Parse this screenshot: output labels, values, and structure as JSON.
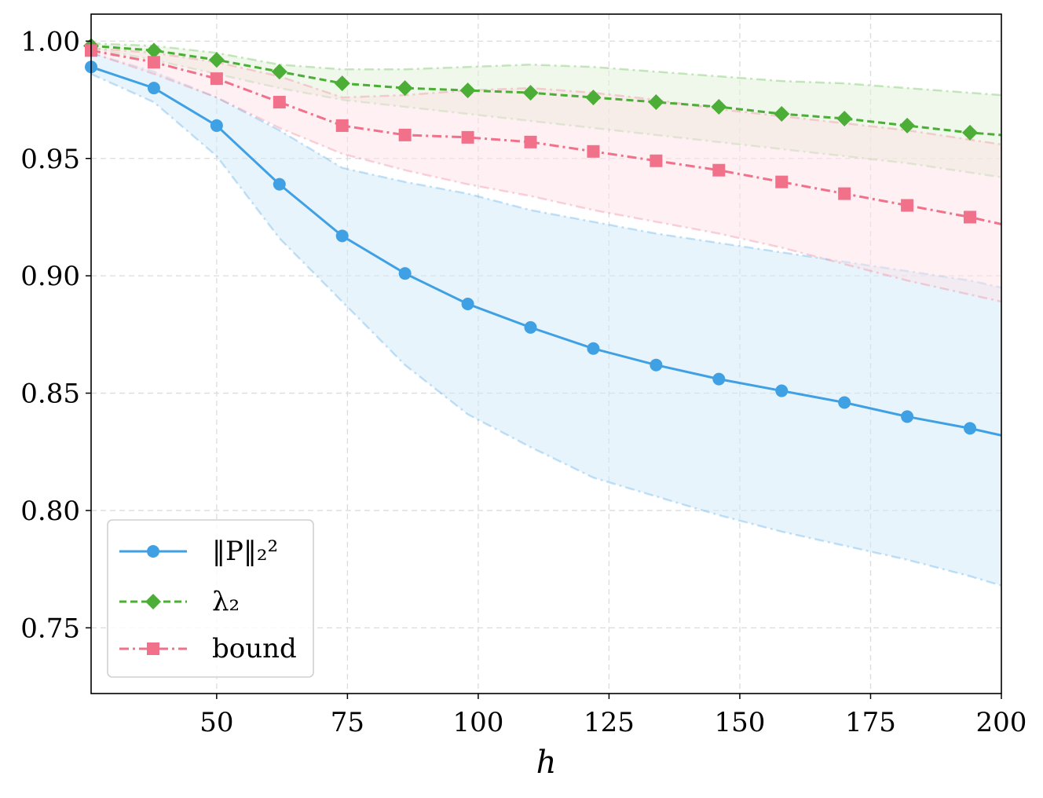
{
  "chart_data": {
    "type": "line",
    "xlabel": "h",
    "ylabel": "",
    "title": "",
    "xlim": [
      26,
      200
    ],
    "ylim": [
      0.722,
      1.0115
    ],
    "grid": true,
    "legend_position": "bottom-left",
    "x": [
      26,
      38,
      50,
      62,
      74,
      86,
      98,
      110,
      122,
      134,
      146,
      158,
      170,
      182,
      194,
      200
    ],
    "xticks": [
      {
        "value": 50,
        "label": "50"
      },
      {
        "value": 75,
        "label": "75"
      },
      {
        "value": 100,
        "label": "100"
      },
      {
        "value": 125,
        "label": "125"
      },
      {
        "value": 150,
        "label": "150"
      },
      {
        "value": 175,
        "label": "175"
      },
      {
        "value": 200,
        "label": "200"
      }
    ],
    "yticks": [
      {
        "value": 0.75,
        "label": "0.75"
      },
      {
        "value": 0.8,
        "label": "0.80"
      },
      {
        "value": 0.85,
        "label": "0.85"
      },
      {
        "value": 0.9,
        "label": "0.90"
      },
      {
        "value": 0.95,
        "label": "0.95"
      },
      {
        "value": 1.0,
        "label": "1.00"
      }
    ],
    "series": [
      {
        "key": "p-norm",
        "legend": "‖P‖₂²",
        "color": "#3fa0e4",
        "fill_color": "#d2eaf9",
        "line_style": "solid",
        "marker": "circle",
        "values": [
          0.989,
          0.98,
          0.964,
          0.939,
          0.917,
          0.901,
          0.888,
          0.878,
          0.869,
          0.862,
          0.856,
          0.851,
          0.846,
          0.84,
          0.835,
          0.832
        ],
        "upper": [
          0.995,
          0.987,
          0.976,
          0.962,
          0.946,
          0.94,
          0.935,
          0.928,
          0.923,
          0.918,
          0.914,
          0.91,
          0.906,
          0.902,
          0.898,
          0.895
        ],
        "lower": [
          0.986,
          0.974,
          0.951,
          0.916,
          0.889,
          0.862,
          0.841,
          0.827,
          0.814,
          0.806,
          0.798,
          0.791,
          0.785,
          0.779,
          0.772,
          0.768
        ]
      },
      {
        "key": "lambda2",
        "legend": "λ₂",
        "color": "#4cae36",
        "fill_color": "#dff1d7",
        "line_style": "dashed",
        "marker": "diamond",
        "values": [
          0.998,
          0.996,
          0.992,
          0.987,
          0.982,
          0.98,
          0.979,
          0.978,
          0.976,
          0.974,
          0.972,
          0.969,
          0.967,
          0.964,
          0.961,
          0.96
        ],
        "upper": [
          0.999,
          0.998,
          0.995,
          0.99,
          0.988,
          0.988,
          0.989,
          0.99,
          0.989,
          0.987,
          0.985,
          0.983,
          0.982,
          0.98,
          0.978,
          0.977
        ],
        "lower": [
          0.997,
          0.992,
          0.986,
          0.98,
          0.975,
          0.972,
          0.969,
          0.966,
          0.963,
          0.96,
          0.957,
          0.954,
          0.951,
          0.948,
          0.944,
          0.942
        ]
      },
      {
        "key": "bound",
        "legend": "bound",
        "color": "#f07189",
        "fill_color": "#fde1e7",
        "line_style": "dashdot",
        "marker": "square",
        "values": [
          0.996,
          0.991,
          0.984,
          0.974,
          0.964,
          0.96,
          0.959,
          0.957,
          0.953,
          0.949,
          0.945,
          0.94,
          0.935,
          0.93,
          0.925,
          0.922
        ],
        "upper": [
          0.997,
          0.995,
          0.991,
          0.985,
          0.976,
          0.977,
          0.979,
          0.98,
          0.978,
          0.975,
          0.971,
          0.968,
          0.965,
          0.962,
          0.958,
          0.956
        ],
        "lower": [
          0.995,
          0.986,
          0.976,
          0.963,
          0.952,
          0.945,
          0.939,
          0.934,
          0.928,
          0.923,
          0.918,
          0.912,
          0.905,
          0.898,
          0.892,
          0.889
        ]
      }
    ]
  }
}
